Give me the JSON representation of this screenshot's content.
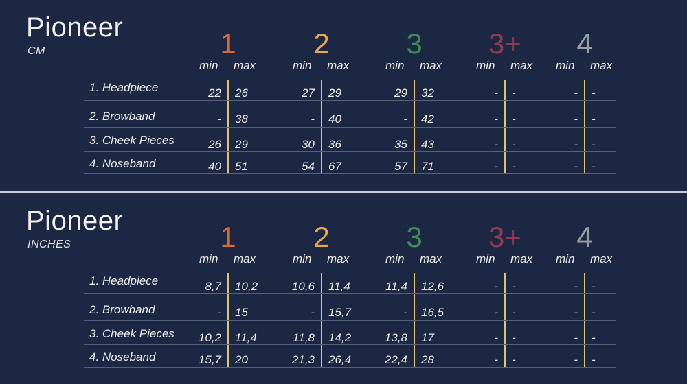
{
  "sizes": [
    {
      "label": "1",
      "color": "#e0652e"
    },
    {
      "label": "2",
      "color": "#e8a94a"
    },
    {
      "label": "3",
      "color": "#3f8a55"
    },
    {
      "label": "3+",
      "color": "#8f3a52"
    },
    {
      "label": "4",
      "color": "#9a9ca3"
    }
  ],
  "min_label": "min",
  "max_label": "max",
  "panels": [
    {
      "title": "Pioneer",
      "unit": "CM",
      "rows": [
        {
          "label": "1. Headpiece",
          "values": [
            [
              "22",
              "26"
            ],
            [
              "27",
              "29"
            ],
            [
              "29",
              "32"
            ],
            [
              "-",
              "-"
            ],
            [
              "-",
              "-"
            ]
          ]
        },
        {
          "label": "2. Browband",
          "values": [
            [
              "-",
              "38"
            ],
            [
              "-",
              "40"
            ],
            [
              "-",
              "42"
            ],
            [
              "-",
              "-"
            ],
            [
              "-",
              "-"
            ]
          ]
        },
        {
          "label": "3. Cheek Pieces",
          "values": [
            [
              "26",
              "29"
            ],
            [
              "30",
              "36"
            ],
            [
              "35",
              "43"
            ],
            [
              "-",
              "-"
            ],
            [
              "-",
              "-"
            ]
          ]
        },
        {
          "label": "4. Noseband",
          "values": [
            [
              "40",
              "51"
            ],
            [
              "54",
              "67"
            ],
            [
              "57",
              "71"
            ],
            [
              "-",
              "-"
            ],
            [
              "-",
              "-"
            ]
          ]
        }
      ]
    },
    {
      "title": "Pioneer",
      "unit": "INCHES",
      "rows": [
        {
          "label": "1. Headpiece",
          "values": [
            [
              "8,7",
              "10,2"
            ],
            [
              "10,6",
              "11,4"
            ],
            [
              "11,4",
              "12,6"
            ],
            [
              "-",
              "-"
            ],
            [
              "-",
              "-"
            ]
          ]
        },
        {
          "label": "2. Browband",
          "values": [
            [
              "-",
              "15"
            ],
            [
              "-",
              "15,7"
            ],
            [
              "-",
              "16,5"
            ],
            [
              "-",
              "-"
            ],
            [
              "-",
              "-"
            ]
          ]
        },
        {
          "label": "3. Cheek Pieces",
          "values": [
            [
              "10,2",
              "11,4"
            ],
            [
              "11,8",
              "14,2"
            ],
            [
              "13,8",
              "17"
            ],
            [
              "-",
              "-"
            ],
            [
              "-",
              "-"
            ]
          ]
        },
        {
          "label": "4. Noseband",
          "values": [
            [
              "15,7",
              "20"
            ],
            [
              "21,3",
              "26,4"
            ],
            [
              "22,4",
              "28"
            ],
            [
              "-",
              "-"
            ],
            [
              "-",
              "-"
            ]
          ]
        }
      ]
    }
  ]
}
